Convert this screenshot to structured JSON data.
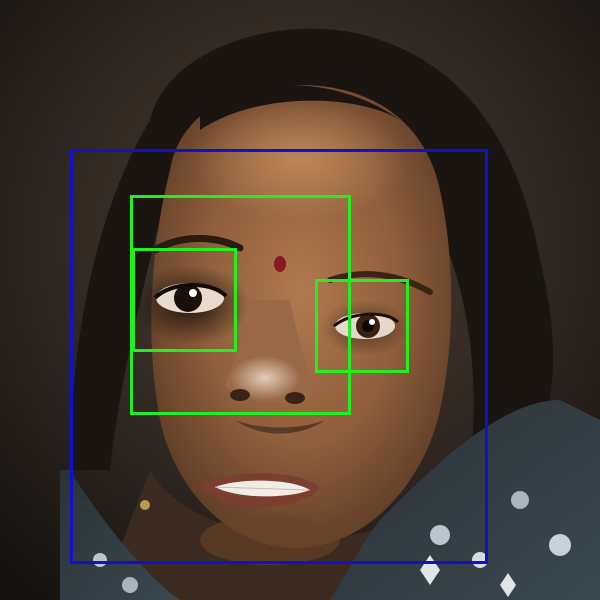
{
  "image": {
    "subject": "portrait-photo"
  },
  "detections": [
    {
      "label": "face",
      "color": "#1010d0"
    },
    {
      "label": "eye-nose-region",
      "color": "#22ee22"
    },
    {
      "label": "left-eye",
      "color": "#22ee22"
    },
    {
      "label": "right-eye",
      "color": "#22ee22"
    }
  ]
}
